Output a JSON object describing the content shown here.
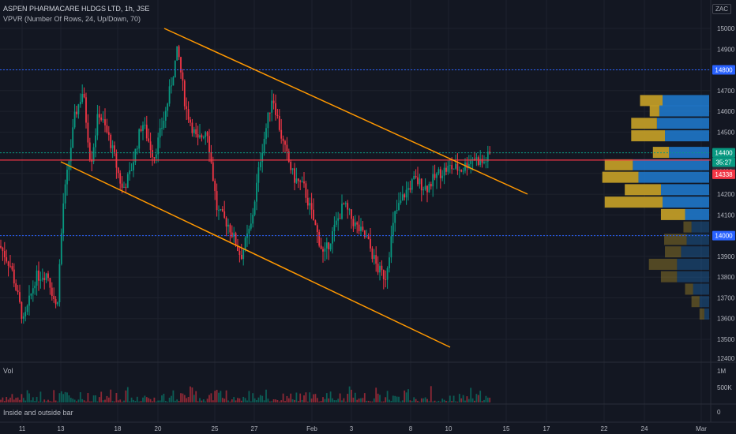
{
  "header": {
    "title": "ASPEN PHARMACARE HLDGS LTD, 1h, JSE",
    "indicator": "VPVR (Number Of Rows, 24, Up/Down, 70)",
    "currency": "ZAC"
  },
  "volume_pane": {
    "label": "Vol",
    "ticks": [
      "1M",
      "500K"
    ]
  },
  "sub_pane": {
    "label": "Inside and outside bar",
    "tick": "0"
  },
  "price_badges": [
    {
      "value": 14800,
      "label": "14800",
      "color": "#2962ff"
    },
    {
      "value": 14400,
      "label": "14400",
      "color": "#089981"
    },
    {
      "value": 14000,
      "label": "14000",
      "color": "#2962ff"
    }
  ],
  "current_price_badge": {
    "value": 14400,
    "label": "14400",
    "countdown": "35:27",
    "color": "#089981"
  },
  "red_line_badge": {
    "value": 14338,
    "label": "14338",
    "color": "#f23645"
  },
  "colors": {
    "up": "#089981",
    "down": "#f23645",
    "trend": "#ff9800",
    "profile_up": "#1f77c9",
    "profile_down": "#c9a227"
  },
  "chart_data": {
    "type": "candlestick",
    "x_ticks": [
      "11",
      "13",
      "18",
      "20",
      "25",
      "27",
      "Feb",
      "3",
      "8",
      "10",
      "15",
      "17",
      "22",
      "24",
      "Mar"
    ],
    "y_ticks": [
      12400,
      13500,
      13600,
      13700,
      13800,
      13900,
      14000,
      14100,
      14200,
      14300,
      14400,
      14500,
      14600,
      14700,
      14800,
      14900,
      15000
    ],
    "ylim": [
      12400,
      15050
    ],
    "horizontal_levels": [
      14800,
      14400,
      14000
    ],
    "resistance_level": 14338,
    "trendlines": [
      {
        "from": {
          "x": "20",
          "y": 15000
        },
        "to": {
          "x": "15",
          "y": 14190
        }
      },
      {
        "from": {
          "x": "13",
          "y": 14350
        },
        "to": {
          "x": "10",
          "y": 13480
        }
      }
    ],
    "volume_profile": [
      {
        "price": 14650,
        "up": 0.58,
        "down": 0.28
      },
      {
        "price": 14600,
        "up": 0.62,
        "down": 0.12
      },
      {
        "price": 14540,
        "up": 0.65,
        "down": 0.32
      },
      {
        "price": 14480,
        "up": 0.55,
        "down": 0.42
      },
      {
        "price": 14400,
        "up": 0.5,
        "down": 0.2
      },
      {
        "price": 14340,
        "up": 0.95,
        "down": 0.35
      },
      {
        "price": 14280,
        "up": 0.88,
        "down": 0.45
      },
      {
        "price": 14220,
        "up": 0.6,
        "down": 0.45
      },
      {
        "price": 14160,
        "up": 0.58,
        "down": 0.72
      },
      {
        "price": 14100,
        "up": 0.3,
        "down": 0.3
      },
      {
        "price": 14040,
        "up": 0.22,
        "down": 0.1
      },
      {
        "price": 13980,
        "up": 0.28,
        "down": 0.28
      },
      {
        "price": 13920,
        "up": 0.35,
        "down": 0.2
      },
      {
        "price": 13860,
        "up": 0.4,
        "down": 0.35
      },
      {
        "price": 13800,
        "up": 0.4,
        "down": 0.2
      },
      {
        "price": 13740,
        "up": 0.2,
        "down": 0.1
      },
      {
        "price": 13680,
        "up": 0.12,
        "down": 0.1
      },
      {
        "price": 13620,
        "up": 0.06,
        "down": 0.06
      }
    ]
  }
}
